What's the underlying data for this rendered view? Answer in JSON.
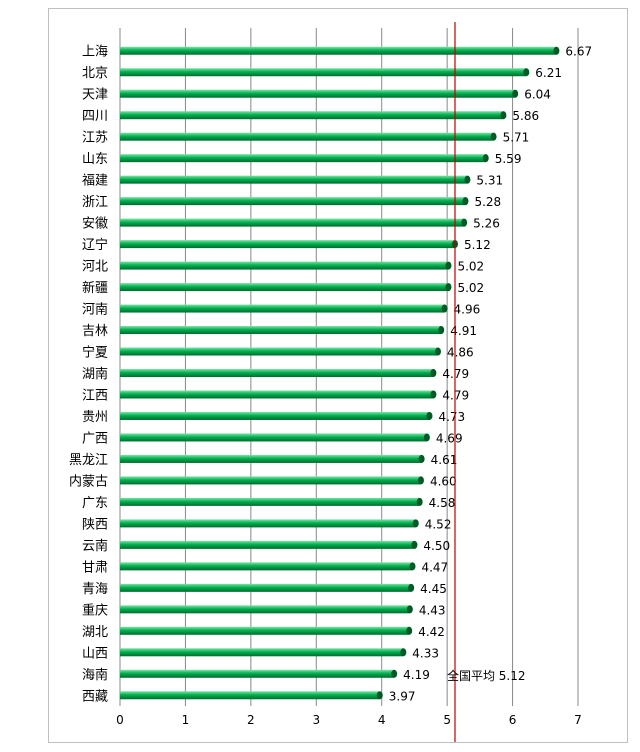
{
  "chart_data": {
    "type": "bar",
    "orientation": "horizontal",
    "title": "",
    "xlabel": "",
    "ylabel": "",
    "xlim": [
      0,
      7
    ],
    "xticks": [
      0,
      1,
      2,
      3,
      4,
      5,
      6,
      7
    ],
    "grid": true,
    "bar_color": "#00b050",
    "reference_line": {
      "label": "全国平均",
      "value": 5.12,
      "color": "#c00000"
    },
    "categories": [
      "上海",
      "北京",
      "天津",
      "四川",
      "江苏",
      "山东",
      "福建",
      "浙江",
      "安徽",
      "辽宁",
      "河北",
      "新疆",
      "河南",
      "吉林",
      "宁夏",
      "湖南",
      "江西",
      "贵州",
      "广西",
      "黑龙江",
      "内蒙古",
      "广东",
      "陕西",
      "云南",
      "甘肃",
      "青海",
      "重庆",
      "湖北",
      "山西",
      "海南",
      "西藏"
    ],
    "values": [
      6.67,
      6.21,
      6.04,
      5.86,
      5.71,
      5.59,
      5.31,
      5.28,
      5.26,
      5.12,
      5.02,
      5.02,
      4.96,
      4.91,
      4.86,
      4.79,
      4.79,
      4.73,
      4.69,
      4.61,
      4.6,
      4.58,
      4.52,
      4.5,
      4.47,
      4.45,
      4.43,
      4.42,
      4.33,
      4.19,
      3.97
    ],
    "value_labels": [
      "6.67",
      "6.21",
      "6.04",
      "5.86",
      "5.71",
      "5.59",
      "5.31",
      "5.28",
      "5.26",
      "5.12",
      "5.02",
      "5.02",
      "4.96",
      "4.91",
      "4.86",
      "4.79",
      "4.79",
      "4.73",
      "4.69",
      "4.61",
      "4.60",
      "4.58",
      "4.52",
      "4.50",
      "4.47",
      "4.45",
      "4.43",
      "4.42",
      "4.33",
      "4.19",
      "3.97"
    ]
  }
}
